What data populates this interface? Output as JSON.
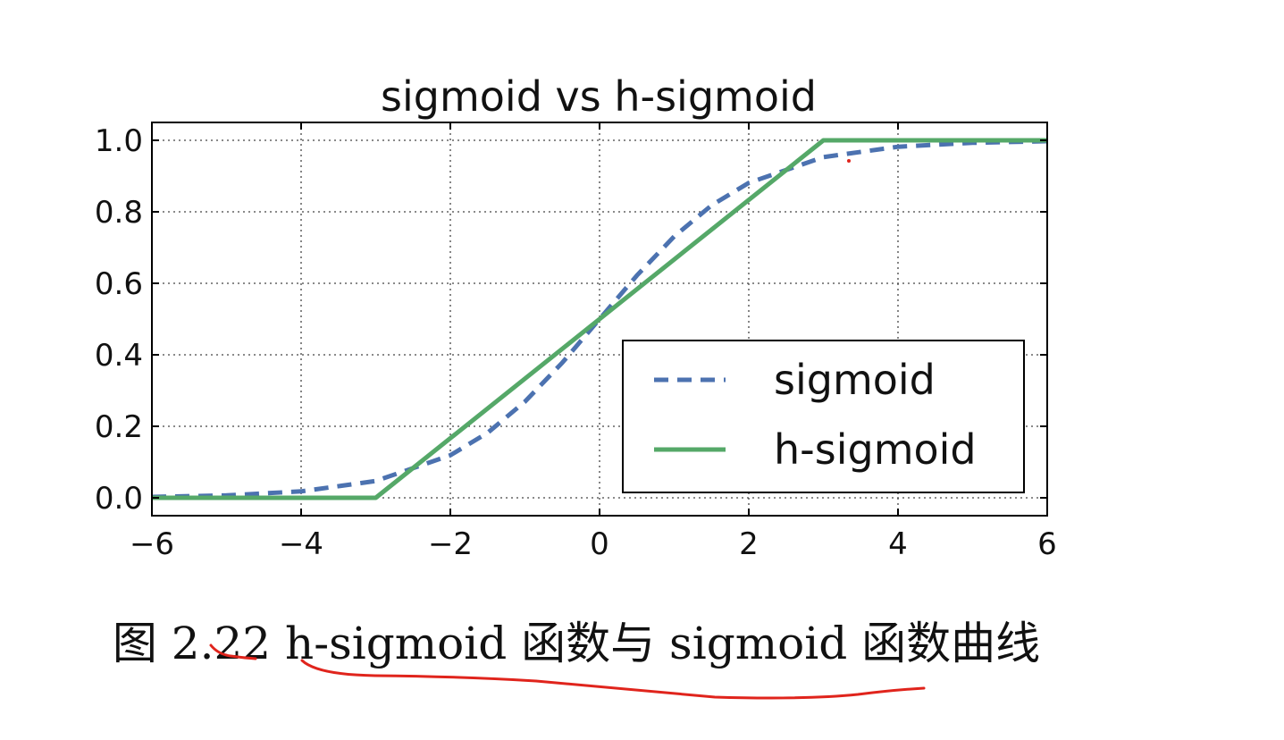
{
  "chart_data": {
    "type": "line",
    "title": "sigmoid vs h-sigmoid",
    "xlabel": "",
    "ylabel": "",
    "xlim": [
      -6,
      6
    ],
    "ylim": [
      -0.05,
      1.05
    ],
    "xticks": [
      -6,
      -4,
      -2,
      0,
      2,
      4,
      6
    ],
    "xtick_labels": [
      "−6",
      "−4",
      "−2",
      "0",
      "2",
      "4",
      "6"
    ],
    "yticks": [
      0.0,
      0.2,
      0.4,
      0.6,
      0.8,
      1.0
    ],
    "ytick_labels": [
      "0.0",
      "0.2",
      "0.4",
      "0.6",
      "0.8",
      "1.0"
    ],
    "grid": true,
    "legend_position": "lower-right",
    "series": [
      {
        "name": "sigmoid",
        "style": "dashed",
        "color": "#4c72b0",
        "x": [
          -6,
          -5,
          -4,
          -3,
          -2,
          -1.5,
          -1,
          -0.5,
          0,
          0.5,
          1,
          1.5,
          2,
          3,
          4,
          5,
          6
        ],
        "y": [
          0.0025,
          0.0067,
          0.018,
          0.047,
          0.119,
          0.182,
          0.269,
          0.378,
          0.5,
          0.622,
          0.731,
          0.818,
          0.881,
          0.953,
          0.982,
          0.993,
          0.9975
        ]
      },
      {
        "name": "h-sigmoid",
        "style": "solid",
        "color": "#55a868",
        "x": [
          -6,
          -3,
          3,
          6
        ],
        "y": [
          0,
          0,
          1,
          1
        ]
      }
    ]
  },
  "caption": "图 2.22 h-sigmoid 函数与 sigmoid 函数曲线"
}
